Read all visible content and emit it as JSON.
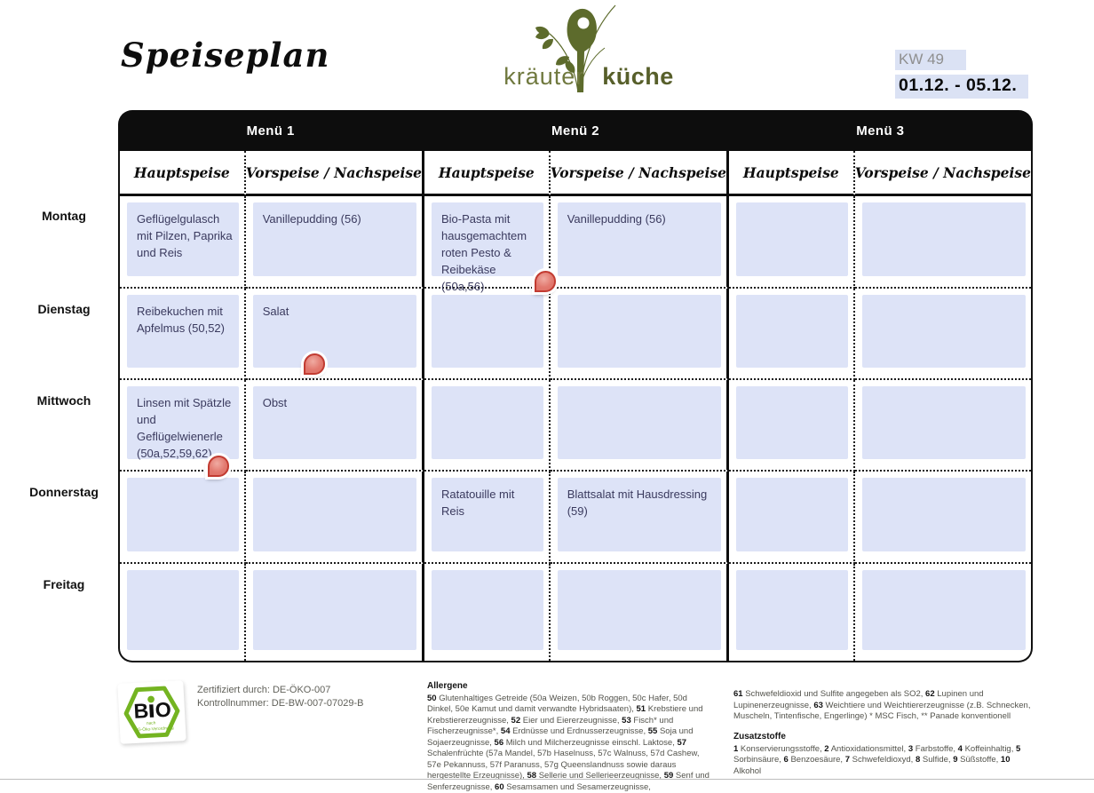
{
  "header": {
    "title": "Speiseplan",
    "logo": {
      "left_word": "kräuter",
      "right_word": "küche",
      "color": "#5d6b2c"
    },
    "week_label": "KW 49",
    "date_range": "01.12. - 05.12."
  },
  "table": {
    "menus": [
      "Menü 1",
      "Menü 2",
      "Menü 3"
    ],
    "course_headers": [
      "Hauptspeise",
      "Vorspeise / Nachspeise"
    ],
    "days": [
      "Montag",
      "Dienstag",
      "Mittwoch",
      "Donnerstag",
      "Freitag"
    ],
    "rows": [
      [
        "Geflügelgulasch mit Pilzen, Paprika und Reis",
        "Vanillepudding (56)",
        "Bio-Pasta mit hausgemachtem roten Pesto & Reibekäse (50a,56)",
        "Vanillepudding (56)",
        "",
        ""
      ],
      [
        "Reibekuchen mit Apfelmus (50,52)",
        "Salat",
        "",
        "",
        "",
        ""
      ],
      [
        "Linsen mit Spätzle und Geflügelwienerle (50a,52,59,62)",
        "Obst",
        "",
        "",
        "",
        ""
      ],
      [
        "",
        "",
        "Ratatouille mit Reis",
        "Blattsalat mit Hausdressing (59)",
        "",
        ""
      ],
      [
        "",
        "",
        "",
        "",
        "",
        ""
      ]
    ]
  },
  "annotations": {
    "icon": "comment-drop-pin-icon",
    "fill_color": "#e2796f",
    "border_color": "#c23b31",
    "count": 3
  },
  "footer": {
    "bio_seal": {
      "text_b": "B",
      "text_o": "O",
      "subtext1": "nach",
      "subtext2": "EG-Öko-Verordnung",
      "green": "#74b421"
    },
    "certified_by": "Zertifiziert durch: DE-ÖKO-007",
    "control_number": "Kontrollnummer: DE-BW-007-07029-B",
    "allergens": {
      "heading": "Allergene",
      "col1": [
        {
          "b": "50"
        },
        {
          "t": " Glutenhaltiges Getreide (50a Weizen, 50b Roggen, 50c Hafer, 50d Dinkel, 50e Kamut und damit verwandte Hybridsaaten), "
        },
        {
          "b": "51"
        },
        {
          "t": " Krebstiere und Krebstiererzeugnisse, "
        },
        {
          "b": "52"
        },
        {
          "t": " Eier und Eiererzeugnisse, "
        },
        {
          "b": "53"
        },
        {
          "t": " Fisch* und Fischerzeugnisse*, "
        },
        {
          "b": "54"
        },
        {
          "t": " Erdnüsse und Erdnusserzeugnisse, "
        },
        {
          "b": "55"
        },
        {
          "t": " Soja und Sojaerzeugnisse, "
        },
        {
          "b": "56"
        },
        {
          "t": " Milch und Milcherzeugnisse einschl. Laktose, "
        },
        {
          "b": "57"
        },
        {
          "t": " Schalenfrüchte (57a Mandel, 57b Haselnuss, 57c Walnuss, 57d Cashew, 57e Pekannuss, 57f Paranuss, 57g Queenslandnuss sowie daraus hergestellte Erzeugnisse), "
        },
        {
          "b": "58"
        },
        {
          "t": " Sellerie und Sellerieerzeugnisse, "
        },
        {
          "b": "59"
        },
        {
          "t": " Senf und Senferzeugnisse, "
        },
        {
          "b": "60"
        },
        {
          "t": " Sesamsamen und Sesamerzeugnisse,"
        }
      ],
      "col2": [
        {
          "b": "61"
        },
        {
          "t": " Schwefeldioxid und Sulfite angegeben als SO2, "
        },
        {
          "b": "62"
        },
        {
          "t": " Lupinen und Lupinenerzeugnisse, "
        },
        {
          "b": "63"
        },
        {
          "t": " Weichtiere und Weichtiererzeugnisse (z.B. Schnecken, Muscheln, Tintenfische, Engerlinge) * MSC Fisch, ** Panade konventionell"
        }
      ]
    },
    "additives": {
      "heading": "Zusatzstoffe",
      "items": [
        {
          "b": "1"
        },
        {
          "t": " Konservierungsstoffe, "
        },
        {
          "b": "2"
        },
        {
          "t": " Antioxidationsmittel, "
        },
        {
          "b": "3"
        },
        {
          "t": " Farbstoffe, "
        },
        {
          "b": "4"
        },
        {
          "t": " Koffeinhaltig, "
        },
        {
          "b": "5"
        },
        {
          "t": " Sorbinsäure, "
        },
        {
          "b": "6"
        },
        {
          "t": " Benzoesäure, "
        },
        {
          "b": "7"
        },
        {
          "t": " Schwefeldioxyd, "
        },
        {
          "b": "8"
        },
        {
          "t": " Sulfide, "
        },
        {
          "b": "9"
        },
        {
          "t": " Süßstoffe, "
        },
        {
          "b": "10"
        },
        {
          "t": " Alkohol"
        }
      ]
    }
  }
}
